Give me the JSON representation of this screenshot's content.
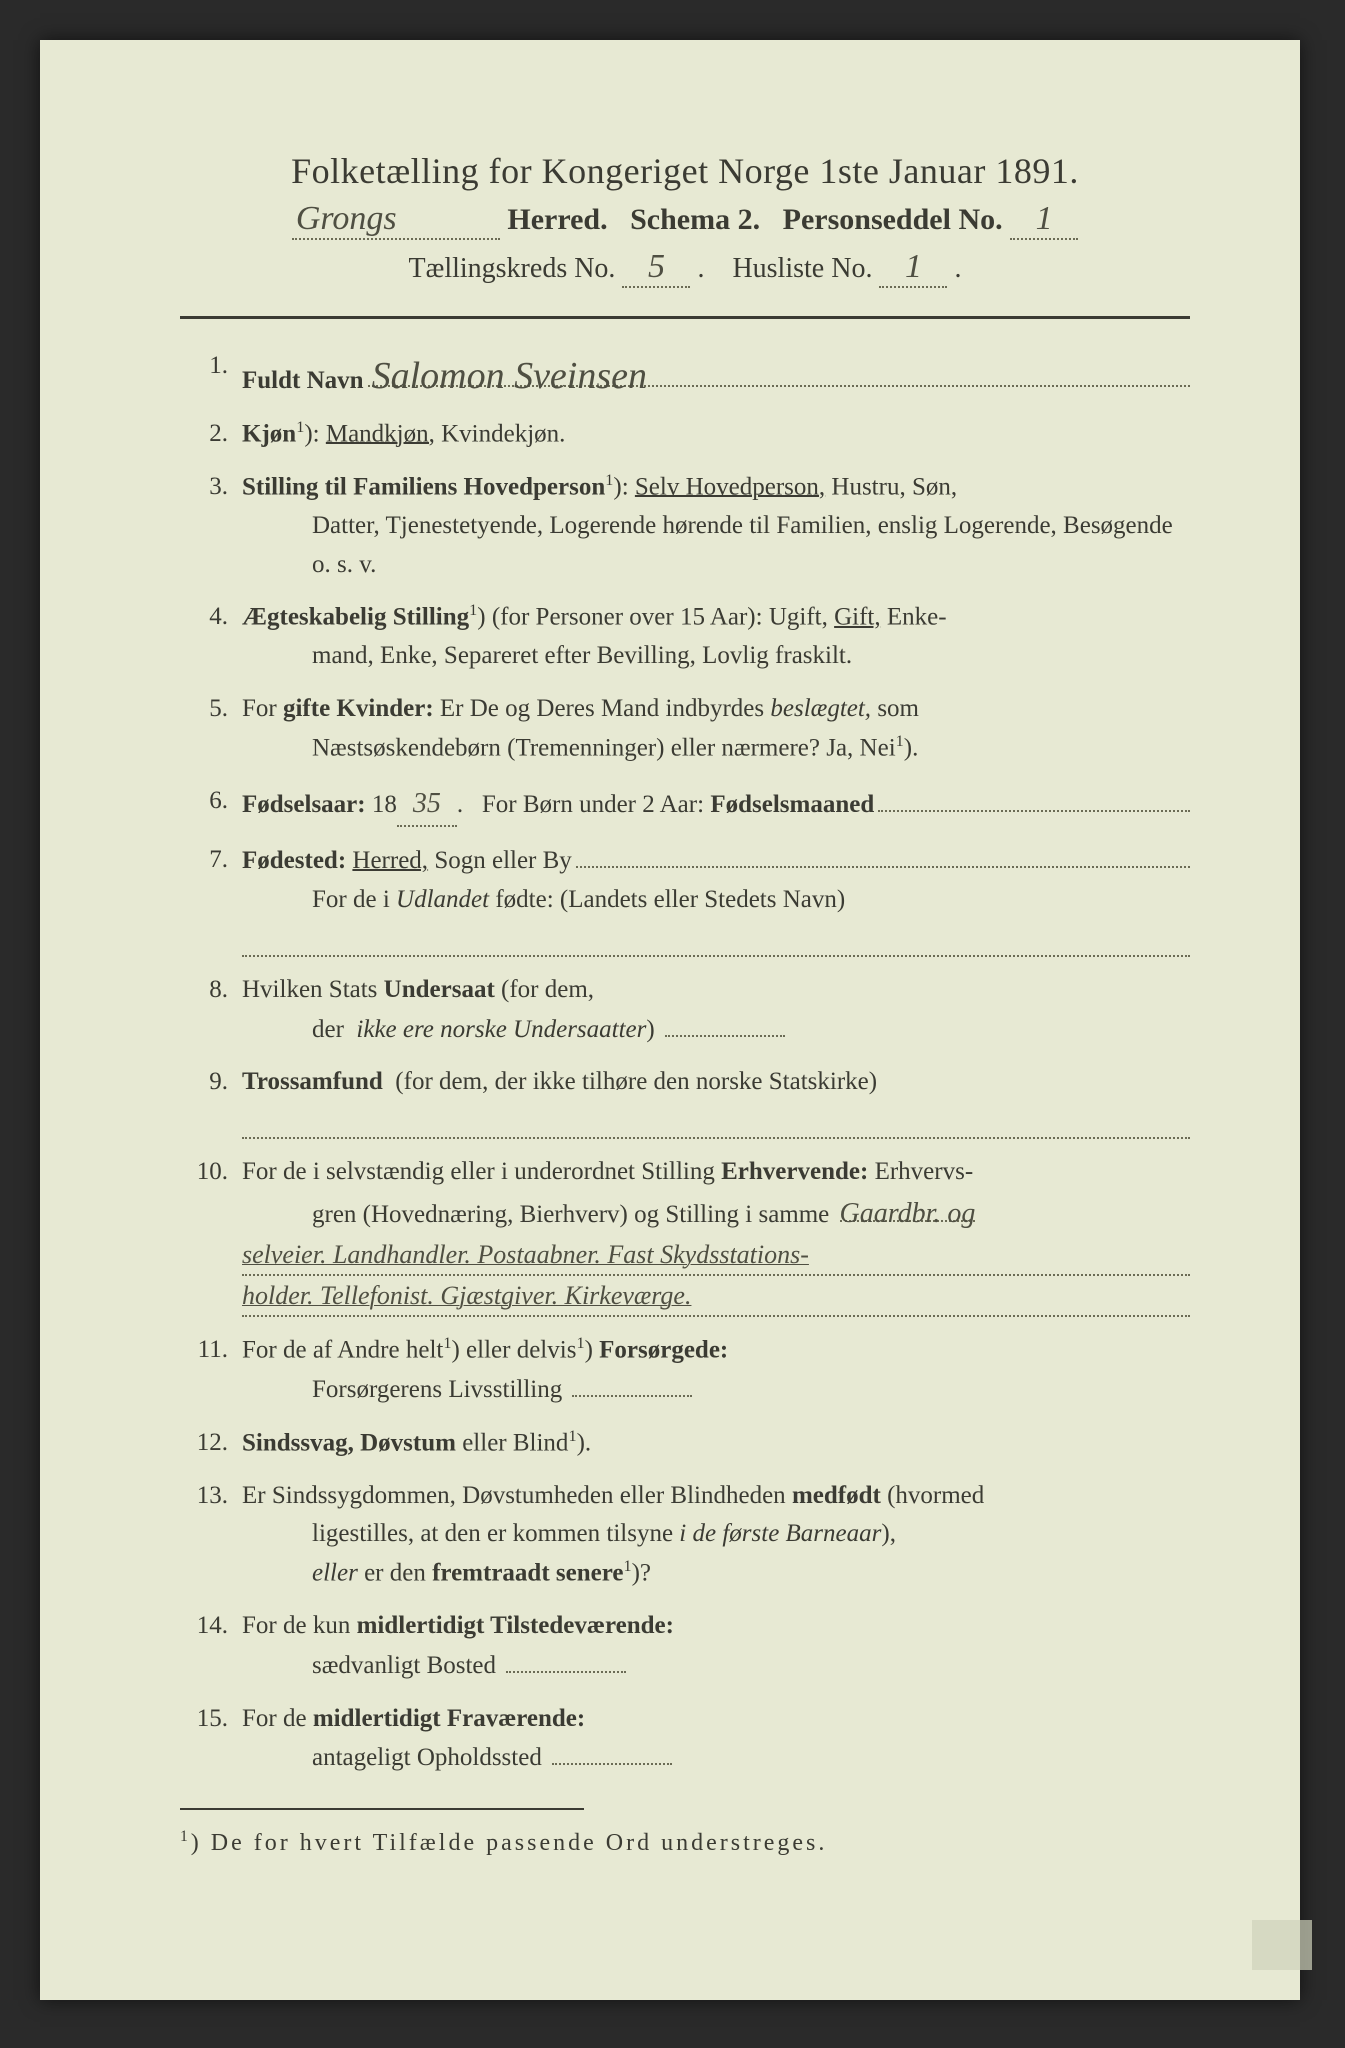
{
  "header": {
    "title": "Folketælling for Kongeriget Norge 1ste Januar 1891.",
    "herred_hw": "Grongs",
    "line2_a": "Herred.",
    "line2_b": "Schema 2.",
    "line2_c": "Personseddel No.",
    "personseddel_no": "1",
    "line3_a": "Tællingskreds No.",
    "kreds_no": "5",
    "line3_b": "Husliste No.",
    "husliste_no": "1"
  },
  "q1": {
    "label": "Fuldt Navn",
    "value": "Salomon Sveinsen"
  },
  "q2": {
    "label_a": "Kjøn",
    "opt1": "Mandkjøn,",
    "opt2": "Kvindekjøn."
  },
  "q3": {
    "label": "Stilling til Familiens Hovedperson",
    "opt_sel": "Selv Hovedperson,",
    "rest1": "Hustru, Søn,",
    "rest2": "Datter, Tjenestetyende, Logerende hørende til Familien, enslig Logerende, Besøgende",
    "rest3": "o. s. v."
  },
  "q4": {
    "label": "Ægteskabelig Stilling",
    "paren": "(for Personer over 15 Aar):",
    "opts_a": "Ugift,",
    "opt_sel": "Gift,",
    "opts_b": "Enkemand, Enke, Separeret efter Bevilling, Lovlig fraskilt."
  },
  "q5": {
    "a": "For",
    "b": "gifte Kvinder:",
    "c": "Er De og Deres Mand indbyrdes",
    "d": "beslægtet,",
    "e": "som",
    "line2": "Næstsøskendebørn (Tremenninger) eller nærmere?  Ja, Nei"
  },
  "q6": {
    "a": "Fødselsaar:",
    "prefix": "18",
    "year": "35",
    "b": "For Børn under 2 Aar:",
    "c": "Fødselsmaaned"
  },
  "q7": {
    "a": "Fødested:",
    "sel": "Herred,",
    "b": "Sogn eller By",
    "line2a": "For de i",
    "line2b": "Udlandet",
    "line2c": "fødte: (Landets eller Stedets Navn)"
  },
  "q8": {
    "a": "Hvilken Stats",
    "b": "Undersaat",
    "c": "(for dem,",
    "line2a": "der",
    "line2b": "ikke ere norske Undersaatter"
  },
  "q9": {
    "a": "Trossamfund",
    "b": "(for dem, der ikke tilhøre den norske Statskirke)"
  },
  "q10": {
    "a": "For de i selvstændig eller i underordnet Stilling",
    "b": "Erhvervende:",
    "c": "Erhvervs-",
    "line2": "gren (Hovednæring, Bierhverv) og Stilling i samme",
    "hw1": "Gaardbr. og",
    "hw2": "selveier. Landhandler. Postaabner. Fast Skydsstations-",
    "hw3": "holder. Tellefonist. Gjæstgiver. Kirkeværge."
  },
  "q11": {
    "a": "For de af Andre helt",
    "b": "eller delvis",
    "c": "Forsørgede:",
    "line2": "Forsørgerens Livsstilling"
  },
  "q12": {
    "a": "Sindssvag, Døvstum",
    "b": "eller Blind"
  },
  "q13": {
    "a": "Er Sindssygdommen, Døvstumheden eller Blindheden",
    "b": "medfødt",
    "c": "(hvormed",
    "line2a": "ligestilles, at den er kommen tilsyne",
    "line2b": "i de første Barneaar",
    "line3a": "eller",
    "line3b": "er den",
    "line3c": "fremtraadt senere"
  },
  "q14": {
    "a": "For de kun",
    "b": "midlertidigt Tilstedeværende:",
    "line2": "sædvanligt Bosted"
  },
  "q15": {
    "a": "For de",
    "b": "midlertidigt Fraværende:",
    "line2": "antageligt Opholdssted"
  },
  "footnote": "De for hvert Tilfælde passende Ord understreges.",
  "sup1": "1",
  "paren_close": ")",
  "colon": ":",
  "period": ".",
  "comma_period": ").",
  "question": "?",
  "paren_comma": "),"
}
